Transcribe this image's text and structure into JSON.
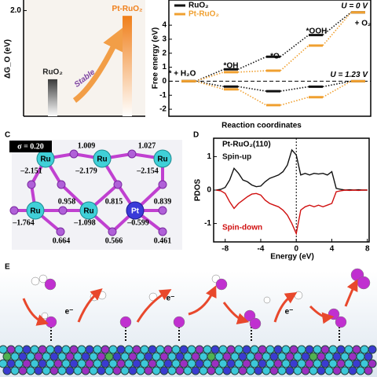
{
  "panel_labels": [
    "C",
    "D",
    "E"
  ],
  "chart_data": [
    {
      "type": "bar",
      "ylabel": "ΔG_O (eV)",
      "categories": [
        "RuO₂",
        "Pt-RuO₂"
      ],
      "values": [
        0.7,
        1.9
      ],
      "colors": [
        "#3a3a3a",
        "#f07f1a"
      ],
      "ylim": [
        0,
        2.2
      ],
      "yticks": [
        {
          "value": 2,
          "label": "2.0"
        }
      ],
      "annotations": [
        "Stable"
      ]
    },
    {
      "type": "step",
      "ylabel": "Free energy (eV)",
      "xlabel": "Reaction coordinates",
      "categories": [
        "* + H₂O",
        "*OH",
        "*O",
        "*OOH",
        "+ O₂"
      ],
      "ylim": [
        -2.5,
        5.8
      ],
      "yticks": [
        -2,
        -1,
        0,
        1,
        2,
        3,
        4
      ],
      "potentials": [
        {
          "label": "U = 0 V",
          "series": [
            {
              "name": "RuO₂",
              "color": "#111111",
              "values": [
                0,
                0.85,
                1.75,
                3.3,
                4.92
              ]
            },
            {
              "name": "Pt-RuO₂",
              "color": "#f0a030",
              "values": [
                0,
                0.65,
                0.75,
                2.55,
                4.92
              ]
            }
          ]
        },
        {
          "label": "U = 1.23 V",
          "series": [
            {
              "color": "#111111",
              "values": [
                0,
                -0.38,
                -0.71,
                -0.39,
                0
              ]
            },
            {
              "color": "#f0a030",
              "values": [
                0,
                -0.58,
                -1.71,
                -1.14,
                0
              ]
            }
          ]
        }
      ]
    },
    {
      "type": "line",
      "title": "Pt-RuO₂(110)",
      "xlabel": "Energy (eV)",
      "ylabel": "PDOS",
      "xlim": [
        -9.3,
        8.2
      ],
      "ylim": [
        -1.55,
        1.55
      ],
      "xticks": [
        -8,
        -4,
        0,
        4,
        8
      ],
      "yticks": [
        -1,
        0,
        1
      ],
      "reference_line_x": 0,
      "x": [
        -9,
        -8.5,
        -8,
        -7.5,
        -7,
        -6.5,
        -6,
        -5.5,
        -5,
        -4.5,
        -4,
        -3.5,
        -3,
        -2.5,
        -2,
        -1.5,
        -1,
        -0.5,
        0,
        0.5,
        1,
        1.5,
        2,
        2.5,
        3,
        3.5,
        4,
        4.5,
        5,
        5.5,
        6,
        6.5,
        7,
        7.5,
        8
      ],
      "series": [
        {
          "name": "Spin-up",
          "color": "#111111",
          "values": [
            0,
            0.02,
            0.08,
            0.3,
            0.65,
            0.5,
            0.3,
            0.25,
            0.15,
            0.1,
            0.12,
            0.25,
            0.35,
            0.4,
            0.45,
            0.55,
            0.75,
            1.2,
            1.05,
            0.45,
            0.5,
            0.45,
            0.5,
            0.48,
            0.5,
            0.45,
            0.55,
            0.05,
            0.02,
            0,
            0.01,
            0,
            0.01,
            0,
            0
          ]
        },
        {
          "name": "Spin-down",
          "color": "#d01010",
          "values": [
            0,
            -0.02,
            -0.1,
            -0.35,
            -0.55,
            -0.4,
            -0.3,
            -0.2,
            -0.12,
            -0.1,
            -0.15,
            -0.3,
            -0.4,
            -0.45,
            -0.5,
            -0.6,
            -0.75,
            -1.0,
            -1.3,
            -0.6,
            -0.5,
            -0.45,
            -0.5,
            -0.45,
            -0.5,
            -0.45,
            -0.4,
            -0.05,
            -0.02,
            0,
            -0.01,
            0,
            -0.01,
            0,
            0
          ]
        }
      ]
    }
  ],
  "diagram_c": {
    "sigma": "σ = 0.20",
    "atoms": [
      "Ru",
      "Ru",
      "Ru",
      "Ru",
      "Ru",
      "Pt"
    ],
    "charges": [
      "1.009",
      "1.027",
      "–2.151",
      "–2.179",
      "–2.154",
      "0.958",
      "0.815",
      "0.839",
      "–1.764",
      "–1.098",
      "–0.599",
      "0.664",
      "0.566",
      "0.461"
    ]
  },
  "scheme_e": {
    "electron_labels": [
      "e⁻",
      "e⁻",
      "e⁻"
    ]
  }
}
